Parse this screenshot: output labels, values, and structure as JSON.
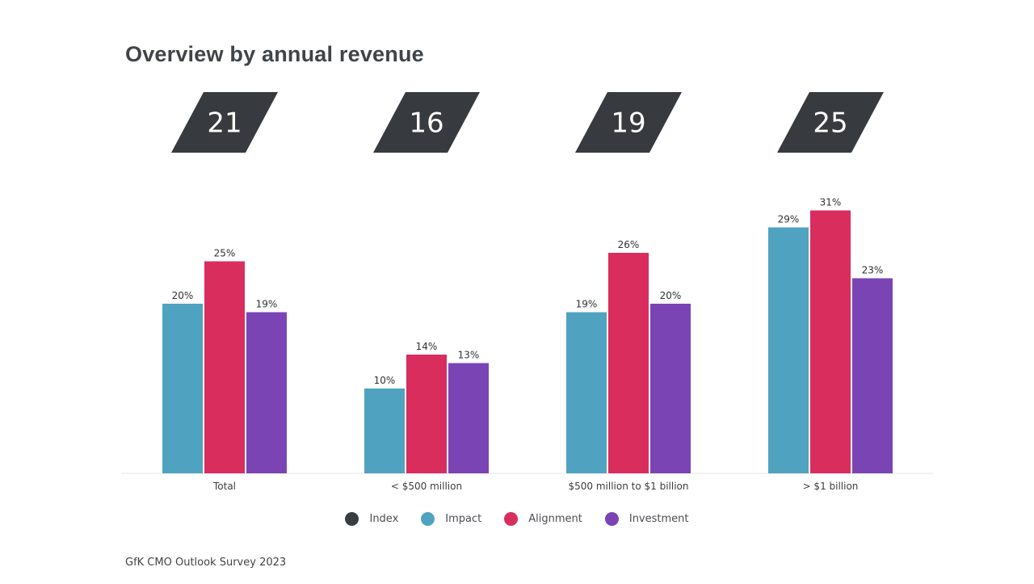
{
  "chart_data": {
    "type": "bar",
    "title": "Overview by annual revenue",
    "categories": [
      "Total",
      "< $500 million",
      "$500 million to $1 billion",
      "> $1 billion"
    ],
    "index_values": [
      21,
      16,
      19,
      25
    ],
    "series": [
      {
        "name": "Impact",
        "color": "#4fa3c1",
        "values": [
          20,
          10,
          19,
          29
        ]
      },
      {
        "name": "Alignment",
        "color": "#d92d5e",
        "values": [
          25,
          14,
          26,
          31
        ]
      },
      {
        "name": "Investment",
        "color": "#7a44b5",
        "values": [
          19,
          13,
          20,
          23
        ]
      }
    ],
    "value_suffix": "%",
    "ylim": [
      0,
      31
    ],
    "legend": [
      {
        "name": "Index",
        "color": "#3a3d40"
      },
      {
        "name": "Impact",
        "color": "#4fa3c1"
      },
      {
        "name": "Alignment",
        "color": "#d92d5e"
      },
      {
        "name": "Investment",
        "color": "#7a44b5"
      }
    ],
    "legend_position": "bottom",
    "grid": false,
    "xlabel": "",
    "ylabel": ""
  },
  "footer": {
    "source": "GfK CMO Outlook Survey 2023"
  },
  "colors": {
    "index_box": "#373b3f",
    "baseline": "#eeeeee"
  }
}
